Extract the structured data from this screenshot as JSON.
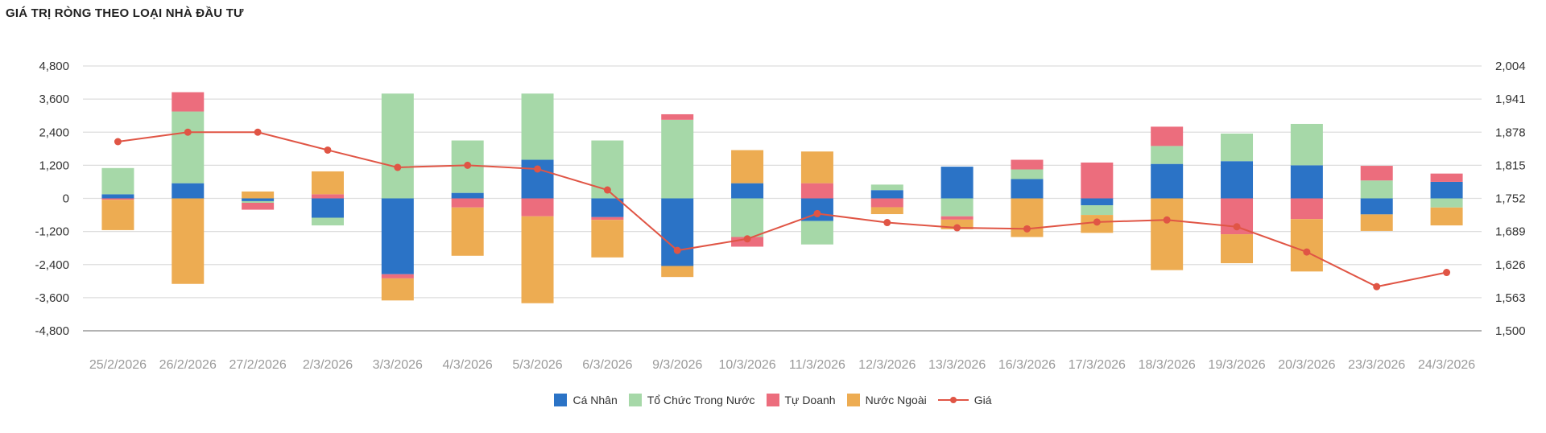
{
  "title": "GIÁ TRỊ RÒNG THEO LOẠI NHÀ ĐẦU TƯ",
  "chart_data": {
    "type": "bar",
    "stacked": true,
    "title": "GIÁ TRỊ RÒNG THEO LOẠI NHÀ ĐẦU TƯ",
    "categories": [
      "25/2/2026",
      "26/2/2026",
      "27/2/2026",
      "2/3/2026",
      "3/3/2026",
      "4/3/2026",
      "5/3/2026",
      "6/3/2026",
      "9/3/2026",
      "10/3/2026",
      "11/3/2026",
      "12/3/2026",
      "13/3/2026",
      "16/3/2026",
      "17/3/2026",
      "18/3/2026",
      "19/3/2026",
      "20/3/2026",
      "23/3/2026",
      "24/3/2026"
    ],
    "y_left": {
      "ticks": [
        4800,
        3600,
        2400,
        1200,
        0,
        -1200,
        -2400,
        -3600,
        -4800
      ],
      "tick_labels": [
        "4,800",
        "3,600",
        "2,400",
        "1,200",
        "0",
        "-1,200",
        "-2,400",
        "-3,600",
        "-4,800"
      ],
      "ylim": [
        -4800,
        4800
      ]
    },
    "y_right": {
      "ticks": [
        2004,
        1941,
        1878,
        1815,
        1752,
        1689,
        1626,
        1563,
        1500
      ],
      "tick_labels": [
        "2,004",
        "1,941",
        "1,878",
        "1,815",
        "1,752",
        "1,689",
        "1,626",
        "1,563",
        "1,500"
      ],
      "ylim": [
        1500,
        2004
      ]
    },
    "series": [
      {
        "name": "Cá Nhân",
        "type": "bar",
        "color": "#2b73c6",
        "values": [
          150,
          550,
          -100,
          -700,
          -2750,
          200,
          1400,
          -680,
          -2450,
          550,
          -820,
          300,
          1150,
          700,
          -250,
          1250,
          1350,
          1200,
          -580,
          600
        ]
      },
      {
        "name": "Tổ Chức Trong Nước",
        "type": "bar",
        "color": "#a6d8a8",
        "values": [
          950,
          2600,
          -60,
          -280,
          3800,
          1900,
          2400,
          2100,
          2850,
          -1400,
          -850,
          200,
          -650,
          350,
          -350,
          650,
          1000,
          1500,
          650,
          -330
        ]
      },
      {
        "name": "Tự Doanh",
        "type": "bar",
        "color": "#ec6d7d",
        "values": [
          -50,
          700,
          -250,
          150,
          -150,
          -330,
          -650,
          -100,
          200,
          -350,
          550,
          -320,
          -120,
          350,
          1300,
          700,
          -1300,
          -750,
          530,
          300
        ]
      },
      {
        "name": "Nước Ngoài",
        "type": "bar",
        "color": "#edac52",
        "values": [
          -1100,
          -3100,
          250,
          830,
          -800,
          -1750,
          -3150,
          -1360,
          -400,
          1200,
          1150,
          -250,
          -350,
          -1400,
          -650,
          -2600,
          -1050,
          -1900,
          -600,
          -650
        ]
      },
      {
        "name": "Giá",
        "type": "line",
        "axis": "right",
        "color": "#e05545",
        "values": [
          1860,
          1878,
          1878,
          1844,
          1811,
          1815,
          1808,
          1768,
          1653,
          1675,
          1723,
          1706,
          1696,
          1694,
          1707,
          1711,
          1698,
          1650,
          1584,
          1611
        ]
      }
    ],
    "legend": {
      "position": "bottom"
    },
    "grid": true
  }
}
